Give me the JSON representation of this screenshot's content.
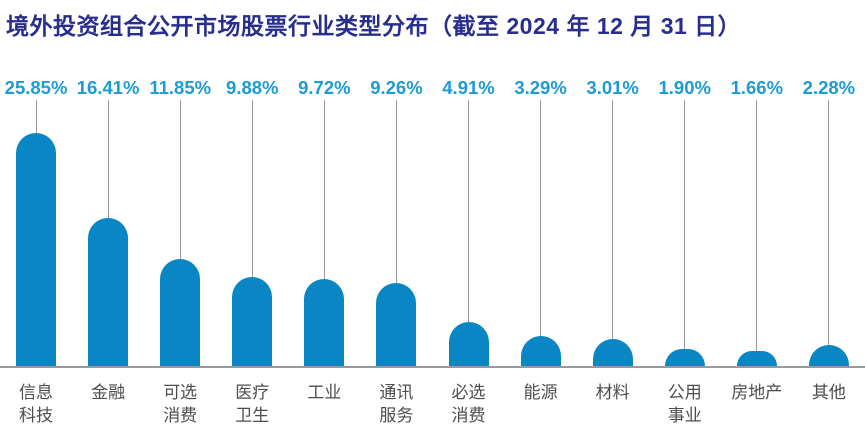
{
  "title": "境外投资组合公开市场股票行业类型分布（截至 2024 年 12 月 31 日）",
  "colors": {
    "background": "#ffffff",
    "title": "#272e8d",
    "value_label": "#1b9bd8",
    "bar": "#0a86c5",
    "stem": "#999999",
    "axis_line": "#9a9a9a",
    "category_label": "#4d4d4d"
  },
  "chart_data": {
    "type": "bar",
    "style": "lollipop-rounded-bar",
    "title": "境外投资组合公开市场股票行业类型分布（截至 2024 年 12 月 31 日）",
    "categories": [
      "信息科技",
      "金融",
      "可选消费",
      "医疗卫生",
      "工业",
      "通讯服务",
      "必选消费",
      "能源",
      "材料",
      "公用事业",
      "房地产",
      "其他"
    ],
    "category_labels": [
      "信息\n科技",
      "金融",
      "可选\n消费",
      "医疗\n卫生",
      "工业",
      "通讯\n服务",
      "必选\n消费",
      "能源",
      "材料",
      "公用\n事业",
      "房地产",
      "其他"
    ],
    "values": [
      25.85,
      16.41,
      11.85,
      9.88,
      9.72,
      9.26,
      4.91,
      3.29,
      3.01,
      1.9,
      1.66,
      2.28
    ],
    "value_labels": [
      "25.85%",
      "16.41%",
      "11.85%",
      "9.88%",
      "9.72%",
      "9.26%",
      "4.91%",
      "3.29%",
      "3.01%",
      "1.90%",
      "1.66%",
      "2.28%"
    ],
    "unit": "%",
    "xlabel": "",
    "ylabel": "",
    "ylim": [
      0,
      26
    ],
    "grid": false,
    "legend": "none",
    "value_labels_position": "above",
    "sorted": "descending except last (其他)"
  }
}
